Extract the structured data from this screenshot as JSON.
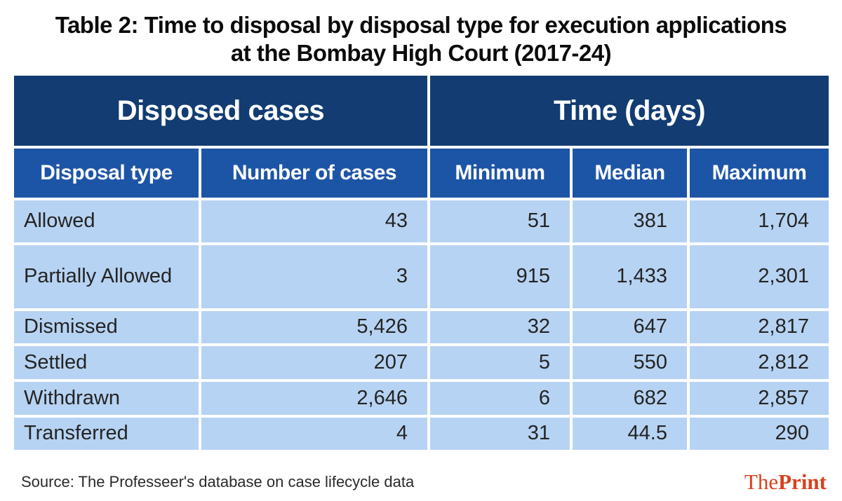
{
  "title": {
    "line1": "Table 2: Time to disposal by disposal type for execution applications",
    "line2": "at the Bombay High Court (2017-24)"
  },
  "table": {
    "groups": {
      "left": "Disposed cases",
      "right": "Time (days)"
    },
    "columns": [
      "Disposal type",
      "Number of cases",
      "Minimum",
      "Median",
      "Maximum"
    ],
    "rows": [
      {
        "type": "Allowed",
        "cases": "43",
        "min": "51",
        "median": "381",
        "max": "1,704"
      },
      {
        "type": "Partially Allowed",
        "cases": "3",
        "min": "915",
        "median": "1,433",
        "max": "2,301"
      },
      {
        "type": "Dismissed",
        "cases": "5,426",
        "min": "32",
        "median": "647",
        "max": "2,817"
      },
      {
        "type": "Settled",
        "cases": "207",
        "min": "5",
        "median": "550",
        "max": "2,812"
      },
      {
        "type": "Withdrawn",
        "cases": "2,646",
        "min": "6",
        "median": "682",
        "max": "2,857"
      },
      {
        "type": "Transferred",
        "cases": "4",
        "min": "31",
        "median": "44.5",
        "max": "290"
      }
    ]
  },
  "chart_data": {
    "type": "table",
    "title": "Table 2: Time to disposal by disposal type for execution applications at the Bombay High Court (2017-24)",
    "column_groups": [
      {
        "label": "Disposed cases",
        "span": 2
      },
      {
        "label": "Time (days)",
        "span": 3
      }
    ],
    "columns": [
      "Disposal type",
      "Number of cases",
      "Minimum",
      "Median",
      "Maximum"
    ],
    "rows": [
      [
        "Allowed",
        43,
        51,
        381,
        1704
      ],
      [
        "Partially Allowed",
        3,
        915,
        1433,
        2301
      ],
      [
        "Dismissed",
        5426,
        32,
        647,
        2817
      ],
      [
        "Settled",
        207,
        5,
        550,
        2812
      ],
      [
        "Withdrawn",
        2646,
        6,
        682,
        2857
      ],
      [
        "Transferred",
        4,
        31,
        44.5,
        290
      ]
    ],
    "source": "Source: The Professeer's database on case lifecycle data"
  },
  "footer": {
    "source": "Source: The Professeer's database on case lifecycle data",
    "logo_the": "The",
    "logo_print": "Print"
  },
  "colors": {
    "navy": "#123c72",
    "blue": "#1d55a6",
    "lightblue": "#b7d3f3",
    "logored": "#d8421f"
  }
}
